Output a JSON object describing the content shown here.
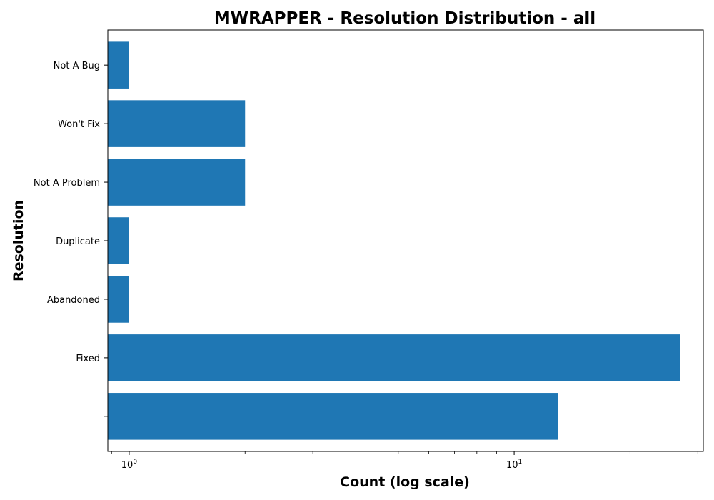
{
  "chart_data": {
    "type": "bar",
    "orientation": "horizontal",
    "title": "MWRAPPER - Resolution Distribution - all",
    "xlabel": "Count (log scale)",
    "ylabel": "Resolution",
    "x_scale": "log",
    "xlim": [
      0.88,
      31
    ],
    "categories": [
      "",
      "Fixed",
      "Abandoned",
      "Duplicate",
      "Not A Problem",
      "Won't Fix",
      "Not A Bug"
    ],
    "values": [
      13,
      27,
      1,
      1,
      2,
      2,
      1
    ],
    "x_ticks": [
      {
        "value": 1,
        "base": "10",
        "exp": "0"
      },
      {
        "value": 10,
        "base": "10",
        "exp": "1"
      }
    ],
    "bar_color": "#1f77b4",
    "grid": false,
    "legend": "none"
  }
}
